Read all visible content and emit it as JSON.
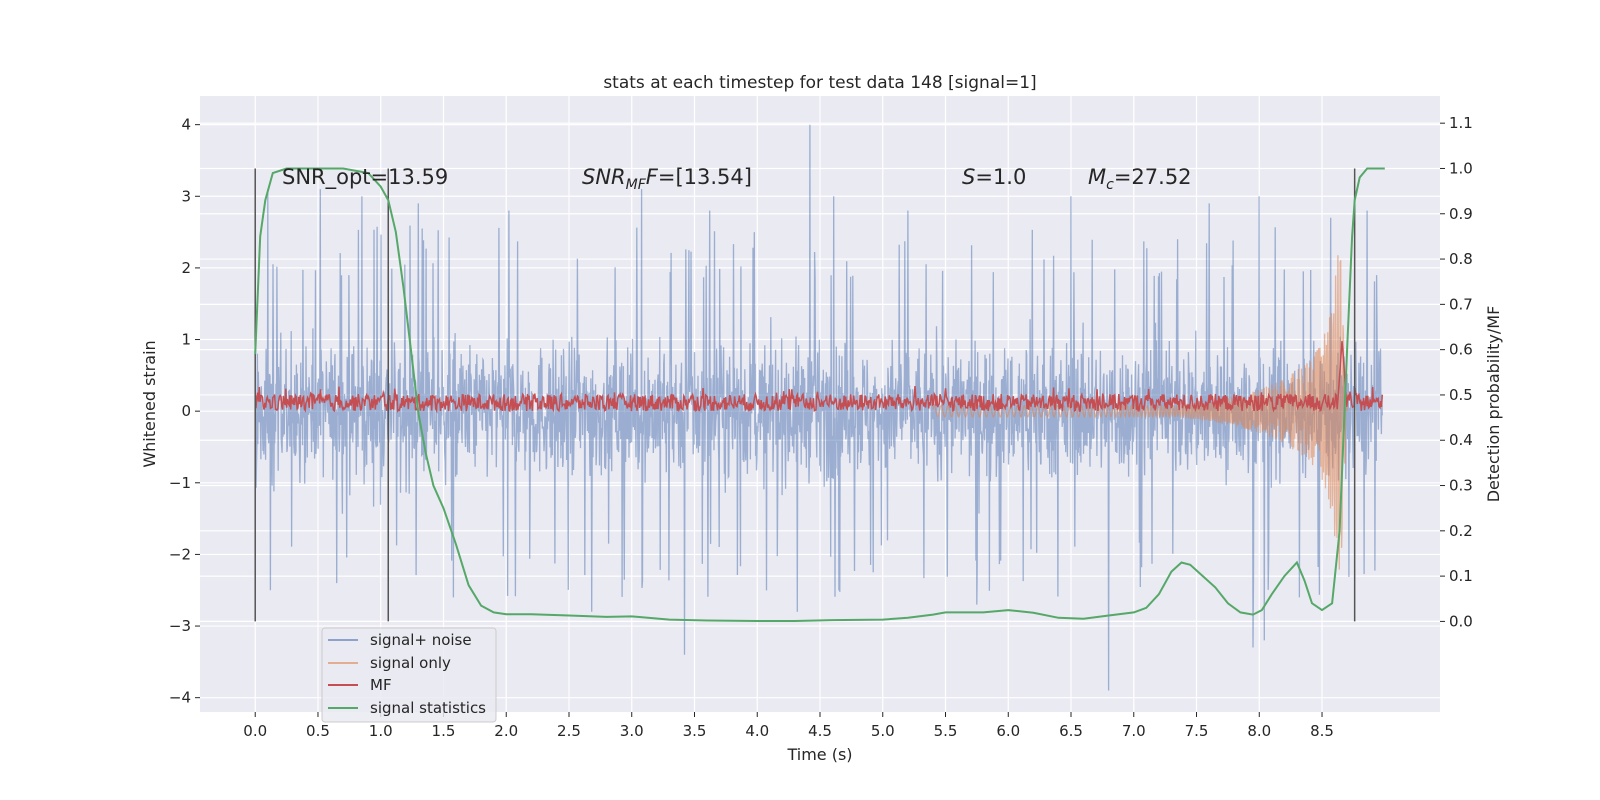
{
  "chart_data": {
    "type": "line",
    "title": "stats at each timestep for test data 148 [signal=1]",
    "xlabel": "Time (s)",
    "ylabel": "Whitened strain",
    "y2label": "Detection probability/MF",
    "xlim": [
      -0.44,
      9.44
    ],
    "ylim": [
      -4.2,
      4.4
    ],
    "y2lim": [
      -0.2,
      1.16
    ],
    "x_ticks": [
      0.0,
      0.5,
      1.0,
      1.5,
      2.0,
      2.5,
      3.0,
      3.5,
      4.0,
      4.5,
      5.0,
      5.5,
      6.0,
      6.5,
      7.0,
      7.5,
      8.0,
      8.5
    ],
    "x_tick_labels": [
      "0.0",
      "0.5",
      "1.0",
      "1.5",
      "2.0",
      "2.5",
      "3.0",
      "3.5",
      "4.0",
      "4.5",
      "5.0",
      "5.5",
      "6.0",
      "6.5",
      "7.0",
      "7.5",
      "8.0",
      "8.5"
    ],
    "y_ticks": [
      4,
      3,
      2,
      1,
      0,
      -1,
      -2,
      -3,
      -4
    ],
    "y_tick_labels": [
      "4",
      "3",
      "2",
      "1",
      "0",
      "−1",
      "−2",
      "−3",
      "−4"
    ],
    "y2_ticks": [
      1.1,
      1.0,
      0.9,
      0.8,
      0.7,
      0.6,
      0.5,
      0.4,
      0.3,
      0.2,
      0.1,
      0.0
    ],
    "y2_tick_labels": [
      "1.1",
      "1.0",
      "0.9",
      "0.8",
      "0.7",
      "0.6",
      "0.5",
      "0.4",
      "0.3",
      "0.2",
      "0.1",
      "0.0"
    ],
    "grid": true,
    "legend_position": "lower-left",
    "legend": [
      {
        "label": "signal+ noise",
        "color": "#4c72b0"
      },
      {
        "label": "signal only",
        "color": "#dd8452"
      },
      {
        "label": "MF",
        "color": "#c44e52"
      },
      {
        "label": "signal statistics",
        "color": "#55a868"
      }
    ],
    "annotations": {
      "snr_opt": "SNR_opt=13.59",
      "snr_mf_base": "SNR",
      "snr_mf_sub": "MF",
      "snr_mf_rest": "=[13.54]",
      "s_base": "S",
      "s_rest": "=1.0",
      "mc_base": "M",
      "mc_sub": "c",
      "mc_rest": "=27.52"
    },
    "vlines": [
      0.0,
      1.06,
      8.76
    ],
    "noise": {
      "x_range": [
        0.0,
        8.98
      ],
      "typical_range": [
        -1.6,
        1.6
      ],
      "peaks_max": [
        [
          0.1,
          3.1
        ],
        [
          0.52,
          3.1
        ],
        [
          0.85,
          3.0
        ],
        [
          1.3,
          2.9
        ],
        [
          2.02,
          2.8
        ],
        [
          3.08,
          3.1
        ],
        [
          3.62,
          2.8
        ],
        [
          4.42,
          4.0
        ],
        [
          4.61,
          3.0
        ],
        [
          5.2,
          2.8
        ],
        [
          5.75,
          3.1
        ],
        [
          6.5,
          3.0
        ],
        [
          7.6,
          2.9
        ],
        [
          8.0,
          3.0
        ],
        [
          8.57,
          2.7
        ],
        [
          8.86,
          2.8
        ]
      ],
      "peaks_min": [
        [
          0.12,
          -2.5
        ],
        [
          0.65,
          -2.4
        ],
        [
          1.58,
          -2.6
        ],
        [
          2.68,
          -2.8
        ],
        [
          3.42,
          -3.4
        ],
        [
          4.32,
          -2.8
        ],
        [
          5.75,
          -2.7
        ],
        [
          6.8,
          -3.9
        ],
        [
          7.95,
          -3.3
        ],
        [
          8.04,
          -3.2
        ],
        [
          8.32,
          -2.6
        ]
      ]
    },
    "signal_only": {
      "x": [
        7.4,
        7.6,
        7.8,
        8.0,
        8.2,
        8.4,
        8.5,
        8.58,
        8.62,
        8.65,
        8.67,
        8.7
      ],
      "amplitude": [
        0.1,
        0.14,
        0.2,
        0.3,
        0.45,
        0.7,
        0.95,
        1.5,
        2.1,
        2.5,
        1.2,
        0.0
      ]
    },
    "mf": {
      "x_range": [
        0.0,
        8.98
      ],
      "baseline": 0.12,
      "noise_amp": 0.12,
      "peak": [
        8.66,
        1.0
      ]
    },
    "signal_statistics": {
      "x": [
        0.0,
        0.04,
        0.08,
        0.14,
        0.25,
        0.4,
        0.7,
        0.9,
        1.0,
        1.06,
        1.12,
        1.18,
        1.24,
        1.3,
        1.36,
        1.42,
        1.5,
        1.6,
        1.7,
        1.8,
        1.9,
        2.0,
        2.2,
        2.5,
        2.8,
        3.0,
        3.3,
        3.6,
        4.0,
        4.3,
        4.6,
        5.0,
        5.2,
        5.4,
        5.5,
        5.6,
        5.8,
        6.0,
        6.2,
        6.4,
        6.6,
        6.8,
        7.0,
        7.1,
        7.2,
        7.3,
        7.38,
        7.45,
        7.55,
        7.65,
        7.75,
        7.85,
        7.95,
        8.02,
        8.1,
        8.2,
        8.3,
        8.36,
        8.42,
        8.5,
        8.58,
        8.64,
        8.7,
        8.74,
        8.76,
        8.8,
        8.86,
        8.9,
        8.95,
        9.0
      ],
      "values": [
        0.59,
        0.85,
        0.93,
        0.99,
        1.0,
        1.0,
        1.0,
        0.99,
        0.96,
        0.93,
        0.86,
        0.74,
        0.6,
        0.46,
        0.37,
        0.3,
        0.25,
        0.17,
        0.08,
        0.035,
        0.02,
        0.016,
        0.016,
        0.013,
        0.01,
        0.011,
        0.004,
        0.002,
        0.001,
        0.001,
        0.003,
        0.004,
        0.008,
        0.015,
        0.02,
        0.02,
        0.02,
        0.025,
        0.019,
        0.008,
        0.006,
        0.013,
        0.02,
        0.03,
        0.06,
        0.11,
        0.13,
        0.125,
        0.1,
        0.075,
        0.04,
        0.02,
        0.015,
        0.025,
        0.06,
        0.1,
        0.13,
        0.09,
        0.04,
        0.025,
        0.04,
        0.2,
        0.6,
        0.85,
        0.93,
        0.98,
        1.0,
        1.0,
        1.0,
        1.0
      ]
    }
  }
}
